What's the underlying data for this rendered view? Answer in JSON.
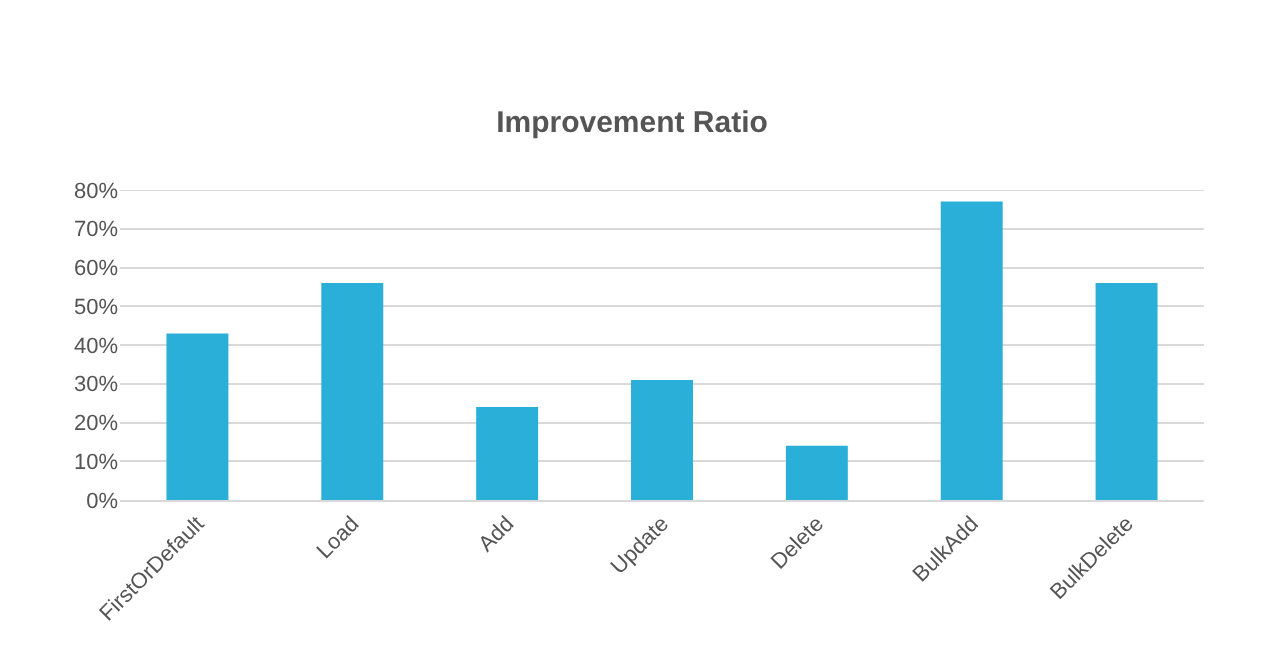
{
  "chart_data": {
    "type": "bar",
    "title": "Improvement Ratio",
    "categories": [
      "FirstOrDefault",
      "Load",
      "Add",
      "Update",
      "Delete",
      "BulkAdd",
      "BulkDelete"
    ],
    "values": [
      43,
      56,
      24,
      31,
      14,
      77,
      56
    ],
    "color": "#2aafd9",
    "ylim": [
      0,
      80
    ],
    "yticks": [
      {
        "value": 0,
        "label": "0%"
      },
      {
        "value": 10,
        "label": "10%"
      },
      {
        "value": 20,
        "label": "20%"
      },
      {
        "value": 30,
        "label": "30%"
      },
      {
        "value": 40,
        "label": "40%"
      },
      {
        "value": 50,
        "label": "50%"
      },
      {
        "value": 60,
        "label": "60%"
      },
      {
        "value": 70,
        "label": "70%"
      },
      {
        "value": 80,
        "label": "80%"
      }
    ],
    "grid": "y"
  }
}
